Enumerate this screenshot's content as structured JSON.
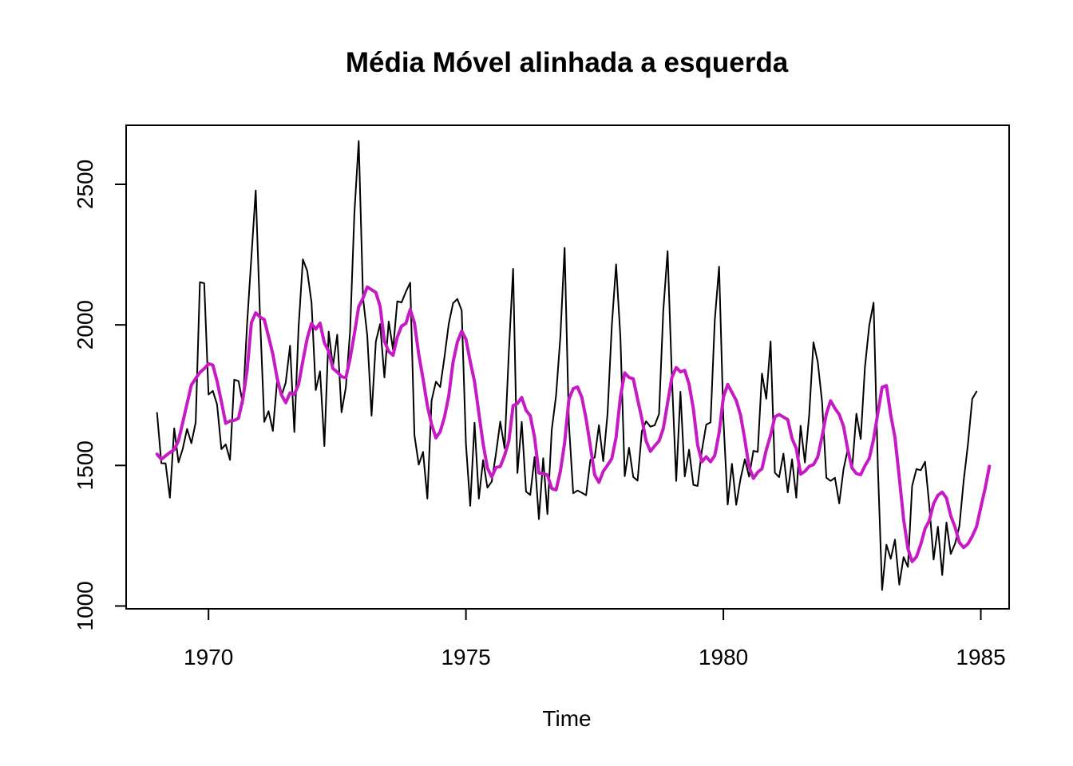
{
  "chart_data": {
    "type": "line",
    "title": "Média Móvel alinhada a esquerda",
    "xlabel": "Time",
    "ylabel": "",
    "xlim": [
      1968.4,
      1985.55
    ],
    "ylim": [
      990,
      2710
    ],
    "x_ticks": [
      "1970",
      "1975",
      "1980",
      "1985"
    ],
    "y_ticks": [
      "1000",
      "1500",
      "2000",
      "2500"
    ],
    "grid": false,
    "legend": "none",
    "series": [
      {
        "color": "#000000",
        "start": 1969.0,
        "step": 0.08333333,
        "values": [
          1687,
          1508,
          1507,
          1385,
          1632,
          1511,
          1559,
          1630,
          1579,
          1653,
          2152,
          2148,
          1752,
          1765,
          1717,
          1558,
          1575,
          1520,
          1805,
          1800,
          1719,
          2008,
          2242,
          2478,
          2030,
          1655,
          1693,
          1623,
          1805,
          1746,
          1795,
          1926,
          1619,
          1992,
          2233,
          2192,
          2080,
          1768,
          1835,
          1569,
          1976,
          1853,
          1965,
          1689,
          1778,
          1976,
          2397,
          2654,
          2097,
          1963,
          1677,
          1941,
          2003,
          1813,
          2012,
          1912,
          2084,
          2080,
          2118,
          2150,
          1608,
          1503,
          1548,
          1382,
          1731,
          1798,
          1779,
          1887,
          2004,
          2077,
          2092,
          2051,
          1577,
          1356,
          1652,
          1382,
          1519,
          1421,
          1442,
          1543,
          1656,
          1561,
          1905,
          2199,
          1473,
          1655,
          1407,
          1395,
          1530,
          1309,
          1526,
          1327,
          1627,
          1748,
          1958,
          2274,
          1648,
          1401,
          1411,
          1403,
          1394,
          1520,
          1528,
          1643,
          1515,
          1685,
          2000,
          2215,
          1956,
          1462,
          1563,
          1459,
          1446,
          1622,
          1657,
          1638,
          1643,
          1683,
          2050,
          2262,
          1813,
          1445,
          1762,
          1461,
          1556,
          1431,
          1427,
          1554,
          1645,
          1653,
          2016,
          2207,
          1665,
          1361,
          1506,
          1360,
          1453,
          1522,
          1460,
          1552,
          1548,
          1827,
          1737,
          1941,
          1474,
          1458,
          1542,
          1404,
          1522,
          1385,
          1641,
          1510,
          1681,
          1938,
          1868,
          1726,
          1456,
          1445,
          1456,
          1365,
          1487,
          1558,
          1488,
          1684,
          1594,
          1850,
          1998,
          2079,
          1494,
          1057,
          1218,
          1168,
          1236,
          1076,
          1174,
          1139,
          1427,
          1487,
          1483,
          1513,
          1357,
          1165,
          1282,
          1110,
          1297,
          1185,
          1222,
          1284,
          1444,
          1575,
          1737,
          1763
        ]
      },
      {
        "color": "#c61ac5",
        "start": 1969.0,
        "step": 0.08333333,
        "values": [
          1540,
          1522,
          1534,
          1546,
          1556,
          1588,
          1653,
          1720,
          1786,
          1809,
          1831,
          1844,
          1862,
          1857,
          1800,
          1727,
          1650,
          1658,
          1660,
          1668,
          1737,
          1840,
          2008,
          2043,
          2028,
          2019,
          1958,
          1895,
          1809,
          1751,
          1723,
          1758,
          1753,
          1788,
          1872,
          1952,
          2005,
          1985,
          2006,
          1936,
          1906,
          1845,
          1832,
          1816,
          1812,
          1880,
          1968,
          2065,
          2095,
          2135,
          2125,
          2115,
          2066,
          1942,
          1905,
          1892,
          1956,
          1996,
          2005,
          2055,
          2007,
          1895,
          1808,
          1713,
          1646,
          1598,
          1620,
          1673,
          1747,
          1868,
          1939,
          1978,
          1949,
          1870,
          1798,
          1686,
          1578,
          1491,
          1459,
          1493,
          1496,
          1535,
          1587,
          1713,
          1720,
          1742,
          1696,
          1677,
          1599,
          1473,
          1471,
          1466,
          1418,
          1413,
          1479,
          1580,
          1735,
          1773,
          1779,
          1743,
          1666,
          1568,
          1466,
          1440,
          1479,
          1501,
          1525,
          1600,
          1744,
          1829,
          1813,
          1808,
          1736,
          1666,
          1587,
          1550,
          1570,
          1587,
          1631,
          1722,
          1813,
          1848,
          1833,
          1838,
          1789,
          1701,
          1573,
          1513,
          1531,
          1513,
          1535,
          1615,
          1743,
          1788,
          1760,
          1731,
          1679,
          1591,
          1494,
          1454,
          1476,
          1488,
          1555,
          1607,
          1673,
          1681,
          1672,
          1663,
          1596,
          1560,
          1469,
          1479,
          1497,
          1503,
          1530,
          1603,
          1684,
          1730,
          1703,
          1681,
          1639,
          1556,
          1490,
          1471,
          1467,
          1499,
          1525,
          1593,
          1687,
          1778,
          1784,
          1680,
          1599,
          1458,
          1309,
          1204,
          1158,
          1175,
          1219,
          1275,
          1304,
          1364,
          1394,
          1405,
          1384,
          1321,
          1280,
          1226,
          1208,
          1221,
          1248,
          1282,
          1351,
          1418,
          1497
        ]
      }
    ]
  }
}
